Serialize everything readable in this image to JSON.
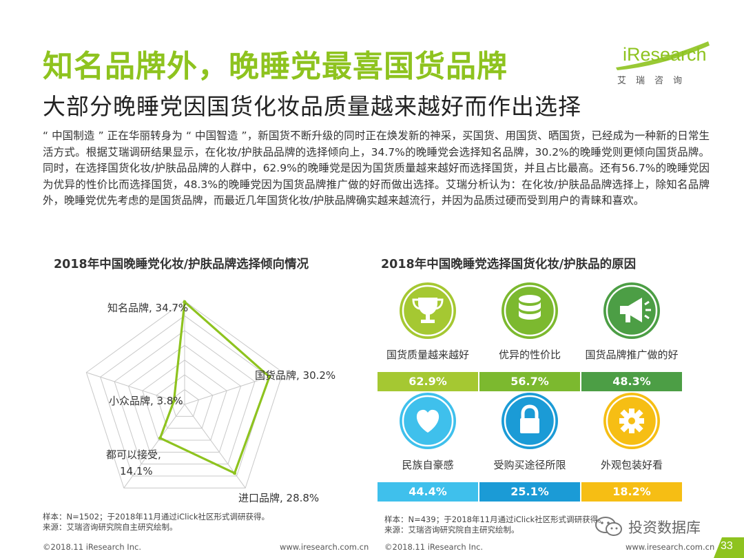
{
  "header": {
    "title": "知名品牌外，晚睡党最喜国货品牌",
    "subtitle": "大部分晚睡党因国货化妆品质量越来越好而作出选择"
  },
  "logo": {
    "wordmark": "iResearch",
    "tagline": "艾瑞咨询"
  },
  "intro_text": "“ 中国制造 ” 正在华丽转身为 “ 中国智造 ”，新国货不断升级的同时正在焕发新的神采，买国货、用国货、晒国货，已经成为一种新的日常生活方式。根据艾瑞调研结果显示，在化妆/护肤品品牌的选择倾向上，34.7%的晚睡党会选择知名品牌，30.2%的晚睡党则更倾向国货品牌。同时，在选择国货化妆/护肤品品牌的人群中，62.9%的晚睡党是因为国货质量越来越好而选择国货，并且占比最高。还有56.7%的晚睡党因为优异的性价比而选择国货，48.3%的晚睡党因为国货品牌推广做的好而做出选择。艾瑞分析认为：在化妆/护肤品品牌选择上，除知名品牌外，晚睡党优先考虑的是国货品牌，而最近几年国货化妆/护肤品牌确实越来越流行，并因为品质过硬而受到用户的青睐和喜欢。",
  "chart_data": [
    {
      "type": "radar",
      "title": "2018年中国晚睡党化妆/护肤品牌选择倾向情况",
      "axes": [
        {
          "label": "知名品牌, 34.7%",
          "value": 34.7
        },
        {
          "label": "国货品牌, 30.2%",
          "value": 30.2
        },
        {
          "label": "进口品牌, 28.8%",
          "value": 28.8
        },
        {
          "label_lines": [
            "都可以接受,",
            "14.1%"
          ],
          "value": 14.1
        },
        {
          "label": "小众品牌, 3.8%",
          "value": 3.8
        }
      ],
      "max": 35,
      "series_color": "#8ec31f",
      "grid_color": "#c8c8c8"
    },
    {
      "type": "bar",
      "title": "2018年中国晚睡党选择国货化妆/护肤品的原因",
      "items": [
        {
          "label": "国货质量越来越好",
          "value": 62.9,
          "value_text": "62.9%",
          "icon": "trophy-icon",
          "color": "#a5c832"
        },
        {
          "label": "优异的性价比",
          "value": 56.7,
          "value_text": "56.7%",
          "icon": "database-icon",
          "color": "#7cb92f"
        },
        {
          "label": "国货品牌推广做的好",
          "value": 48.3,
          "value_text": "48.3%",
          "icon": "megaphone-icon",
          "color": "#4c9e45"
        },
        {
          "label": "民族自豪感",
          "value": 44.4,
          "value_text": "44.4%",
          "icon": "heart-icon",
          "color": "#3fc0ec"
        },
        {
          "label": "受购买途径所限",
          "value": 25.1,
          "value_text": "25.1%",
          "icon": "lock-icon",
          "color": "#1b9bd6"
        },
        {
          "label": "外观包装好看",
          "value": 18.2,
          "value_text": "18.2%",
          "icon": "gear-icon",
          "color": "#f6be14"
        }
      ]
    }
  ],
  "notes": {
    "left_sample": "样本：N=1502；于2018年11月通过iClick社区形式调研获得。",
    "left_source": "来源：艾瑞咨询研究院自主研究绘制。",
    "right_sample": "样本：N=439；于2018年11月通过iClick社区形式调研获得。",
    "right_source": "来源：艾瑞咨询研究院自主研究绘制。"
  },
  "footer": {
    "copyright_left": "©2018.11  iResearch  Inc.",
    "url_left": "www.iresearch.com.cn",
    "copyright_right": "©2018.11  iResearch  Inc.",
    "url_right": "www.iresearch.com.cn"
  },
  "watermark": "投资数据库",
  "page_number": "33"
}
